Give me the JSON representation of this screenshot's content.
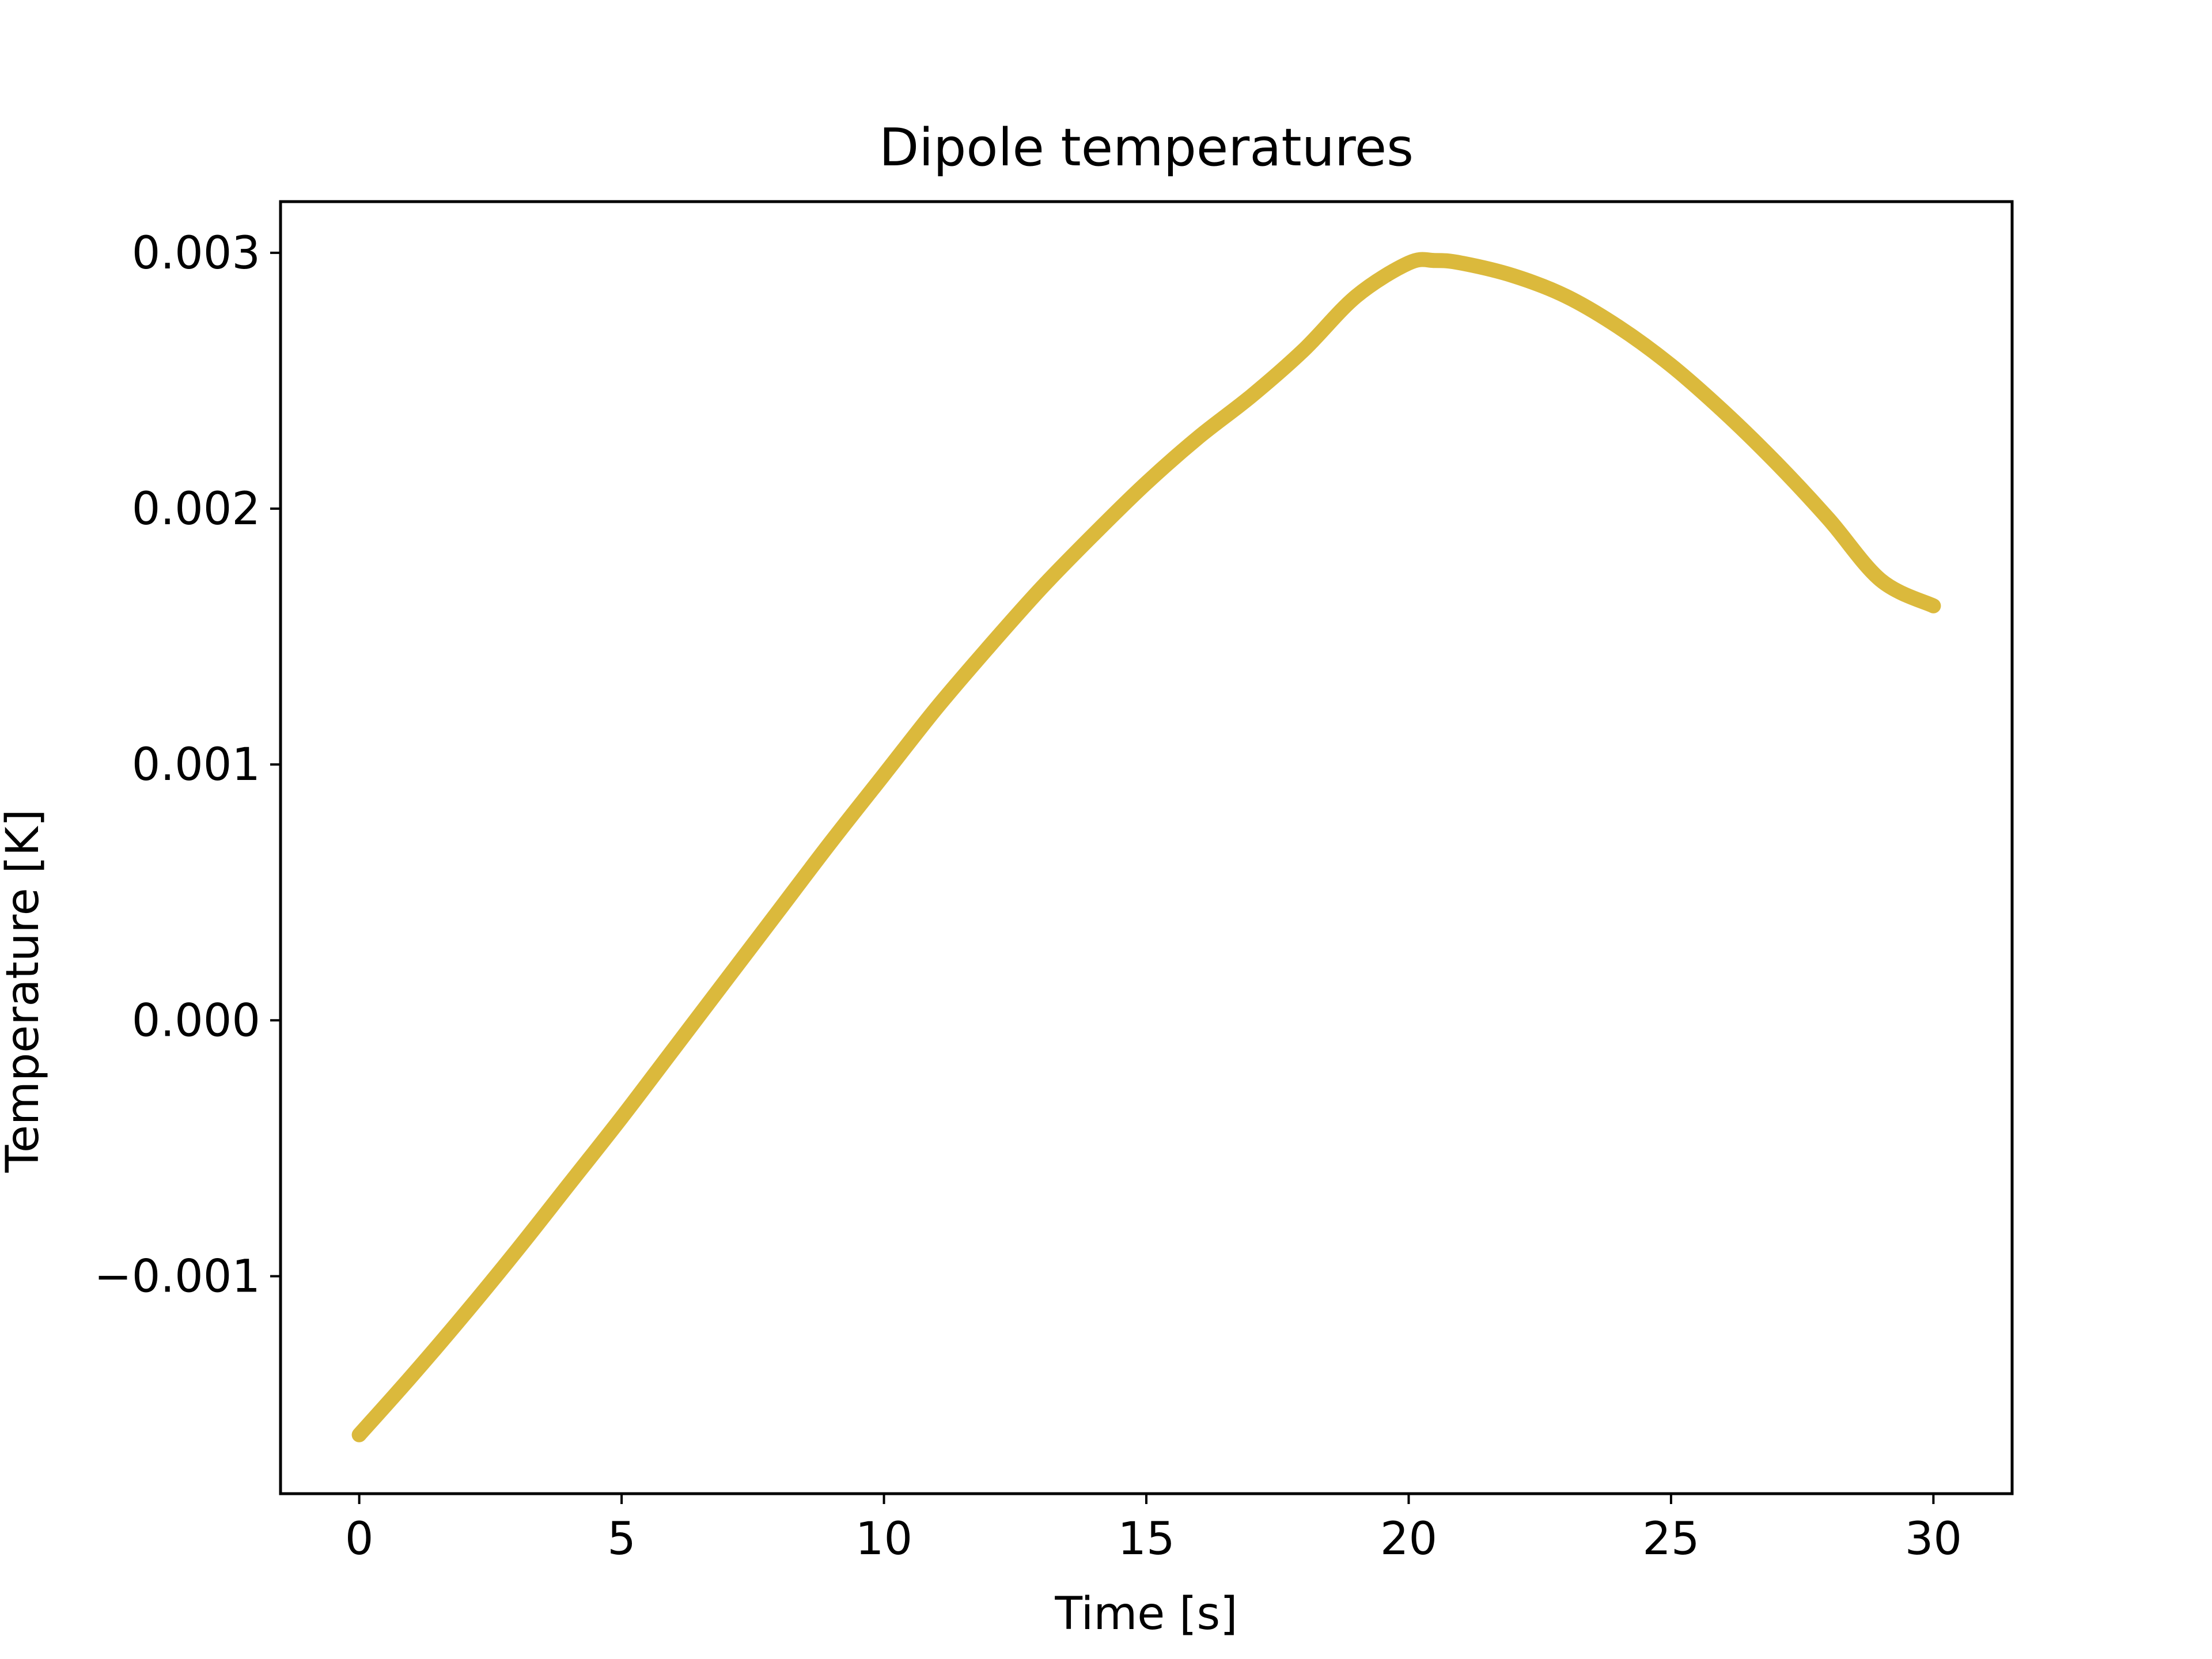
{
  "chart_data": {
    "type": "line",
    "title": "Dipole temperatures",
    "xlabel": "Time [s]",
    "ylabel": "Temperature [K]",
    "xlim": [
      -1.5,
      31.5
    ],
    "ylim": [
      -0.00185,
      0.0032
    ],
    "xticks": [
      0,
      5,
      10,
      15,
      20,
      25,
      30
    ],
    "xtick_labels": [
      "0",
      "5",
      "10",
      "15",
      "20",
      "25",
      "30"
    ],
    "yticks": [
      -0.001,
      0.0,
      0.001,
      0.002,
      0.003
    ],
    "ytick_labels": [
      "−0.001",
      "0.000",
      "0.001",
      "0.002",
      "0.003"
    ],
    "grid": false,
    "legend": "none",
    "series": [
      {
        "color": "#dbb93c",
        "x": [
          0,
          1,
          2,
          3,
          4,
          5,
          6,
          7,
          8,
          9,
          10,
          11,
          12,
          13,
          14,
          15,
          16,
          17,
          18,
          19,
          20,
          20.5,
          21,
          22,
          23,
          24,
          25,
          26,
          27,
          28,
          29,
          30
        ],
        "y": [
          -0.00162,
          -0.00139,
          -0.00115,
          -0.0009,
          -0.00064,
          -0.00038,
          -0.00011,
          0.00016,
          0.00043,
          0.0007,
          0.00096,
          0.00122,
          0.00146,
          0.00169,
          0.0019,
          0.0021,
          0.00228,
          0.00244,
          0.00262,
          0.00283,
          0.00296,
          0.00297,
          0.00296,
          0.00291,
          0.00283,
          0.00271,
          0.00256,
          0.00238,
          0.00218,
          0.00196,
          0.00172,
          0.00162
        ]
      }
    ]
  }
}
